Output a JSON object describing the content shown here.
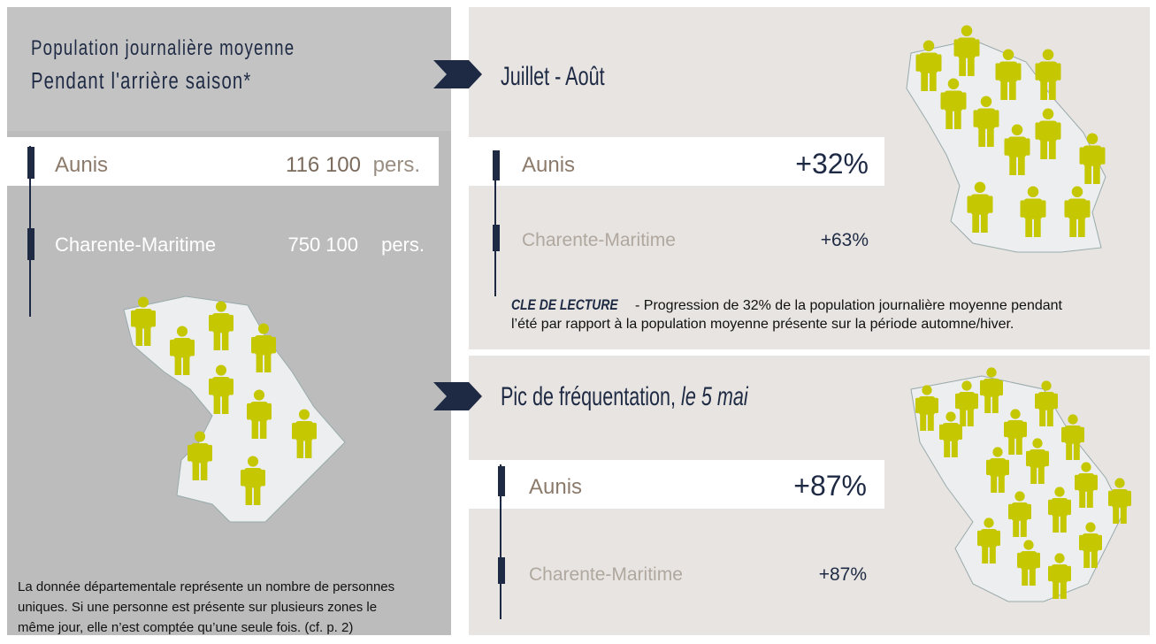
{
  "left": {
    "title_line1": "Population journalière moyenne",
    "title_line2": "Pendant l'arrière saison*",
    "rows": [
      {
        "name": "Aunis",
        "value": "116 100",
        "unit": "pers."
      },
      {
        "name": "Charente-Maritime",
        "value": "750 100",
        "unit": "pers."
      }
    ],
    "note": [
      "La donnée départementale représente un nombre de personnes",
      "uniques. Si une personne est présente sur plusieurs zones le",
      "même jour, elle n’est comptée qu’une seule fois. (cf. p. 2)"
    ]
  },
  "sections": [
    {
      "title": "Juillet - Août",
      "rows": [
        {
          "name": "Aunis",
          "value": "+32%"
        },
        {
          "name": "Charente-Maritime",
          "value": "+63%"
        }
      ],
      "reading_label": "CLE DE LECTURE",
      "reading_text": [
        "- Progression de 32% de la population journalière moyenne pendant",
        "l’été par rapport à la population moyenne présente sur la période automne/hiver."
      ]
    },
    {
      "title": "Pic de fréquentation,",
      "title_emphasis": "le 5 mai",
      "rows": [
        {
          "name": "Aunis",
          "value": "+87%"
        },
        {
          "name": "Charente-Maritime",
          "value": "+87%"
        }
      ]
    }
  ]
}
